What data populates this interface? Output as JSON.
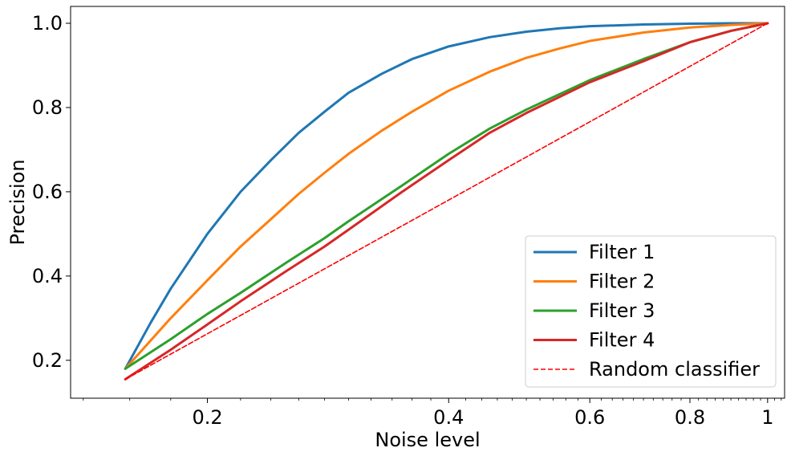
{
  "chart_data": {
    "type": "line",
    "title": "",
    "xlabel": "Noise level",
    "ylabel": "Precision",
    "xscale": "log",
    "xlim": [
      0.135,
      1.05
    ],
    "ylim": [
      0.11,
      1.04
    ],
    "x_ticks": [
      {
        "value": 0.2,
        "label": "0.2"
      },
      {
        "value": 0.4,
        "label": "0.4"
      },
      {
        "value": 0.6,
        "label": "0.6"
      },
      {
        "value": 0.8,
        "label": "0.8"
      },
      {
        "value": 1.0,
        "label": "1"
      }
    ],
    "y_ticks": [
      {
        "value": 0.2,
        "label": "0.2"
      },
      {
        "value": 0.4,
        "label": "0.4"
      },
      {
        "value": 0.6,
        "label": "0.6"
      },
      {
        "value": 0.8,
        "label": "0.8"
      },
      {
        "value": 1.0,
        "label": "1.0"
      }
    ],
    "grid": false,
    "legend_position": "bottom-right",
    "series": [
      {
        "name": "Filter 1",
        "color": "#1f77b4",
        "style": "solid",
        "x": [
          0.158,
          0.17,
          0.18,
          0.2,
          0.22,
          0.24,
          0.26,
          0.28,
          0.3,
          0.33,
          0.36,
          0.4,
          0.45,
          0.5,
          0.55,
          0.6,
          0.7,
          0.8,
          0.9,
          1.0
        ],
        "y": [
          0.18,
          0.29,
          0.37,
          0.5,
          0.6,
          0.675,
          0.74,
          0.79,
          0.835,
          0.88,
          0.915,
          0.945,
          0.967,
          0.98,
          0.988,
          0.993,
          0.997,
          0.999,
          1.0,
          1.0
        ]
      },
      {
        "name": "Filter 2",
        "color": "#ff7f0e",
        "style": "solid",
        "x": [
          0.158,
          0.18,
          0.2,
          0.22,
          0.24,
          0.26,
          0.28,
          0.3,
          0.33,
          0.36,
          0.4,
          0.45,
          0.5,
          0.55,
          0.6,
          0.7,
          0.8,
          0.9,
          1.0
        ],
        "y": [
          0.18,
          0.3,
          0.39,
          0.47,
          0.535,
          0.595,
          0.645,
          0.69,
          0.745,
          0.79,
          0.84,
          0.885,
          0.918,
          0.94,
          0.958,
          0.978,
          0.99,
          0.996,
          1.0
        ]
      },
      {
        "name": "Filter 3",
        "color": "#2ca02c",
        "style": "solid",
        "x": [
          0.158,
          0.18,
          0.2,
          0.22,
          0.25,
          0.28,
          0.3,
          0.35,
          0.4,
          0.45,
          0.5,
          0.6,
          0.7,
          0.8,
          0.9,
          1.0
        ],
        "y": [
          0.18,
          0.25,
          0.31,
          0.36,
          0.43,
          0.49,
          0.53,
          0.615,
          0.69,
          0.75,
          0.795,
          0.865,
          0.915,
          0.955,
          0.982,
          1.0
        ]
      },
      {
        "name": "Filter 4",
        "color": "#d62728",
        "style": "solid",
        "x": [
          0.158,
          0.18,
          0.2,
          0.22,
          0.25,
          0.28,
          0.3,
          0.35,
          0.4,
          0.45,
          0.5,
          0.6,
          0.7,
          0.8,
          0.9,
          1.0
        ],
        "y": [
          0.155,
          0.225,
          0.285,
          0.34,
          0.41,
          0.47,
          0.51,
          0.6,
          0.675,
          0.74,
          0.787,
          0.86,
          0.91,
          0.955,
          0.982,
          1.0
        ]
      },
      {
        "name": "Random classifier",
        "color": "#ff0000",
        "style": "dashed",
        "x": [
          0.158,
          1.0
        ],
        "y": [
          0.155,
          1.0
        ]
      }
    ]
  }
}
